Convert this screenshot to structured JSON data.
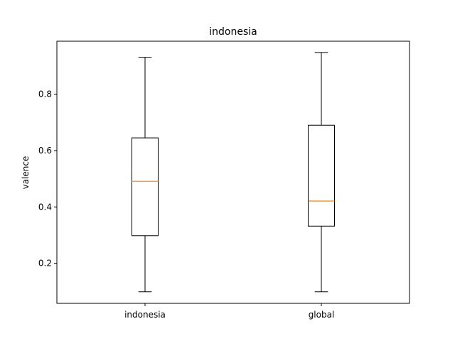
{
  "chart_data": {
    "type": "boxplot",
    "title": "indonesia",
    "xlabel": "",
    "ylabel": "valence",
    "ylim": [
      0.058,
      0.988
    ],
    "yticks": [
      0.2,
      0.4,
      0.6,
      0.8
    ],
    "ytick_labels": [
      "0.2",
      "0.4",
      "0.6",
      "0.8"
    ],
    "categories": [
      "indonesia",
      "global"
    ],
    "boxes": [
      {
        "category": "indonesia",
        "whisker_low": 0.099,
        "q1": 0.298,
        "median": 0.491,
        "q3": 0.645,
        "whisker_high": 0.931
      },
      {
        "category": "global",
        "whisker_low": 0.099,
        "q1": 0.332,
        "median": 0.421,
        "q3": 0.69,
        "whisker_high": 0.948
      }
    ],
    "grid": false,
    "colors": {
      "box": "#000000",
      "median": "#ff7f0e",
      "axes": "#000000"
    }
  }
}
